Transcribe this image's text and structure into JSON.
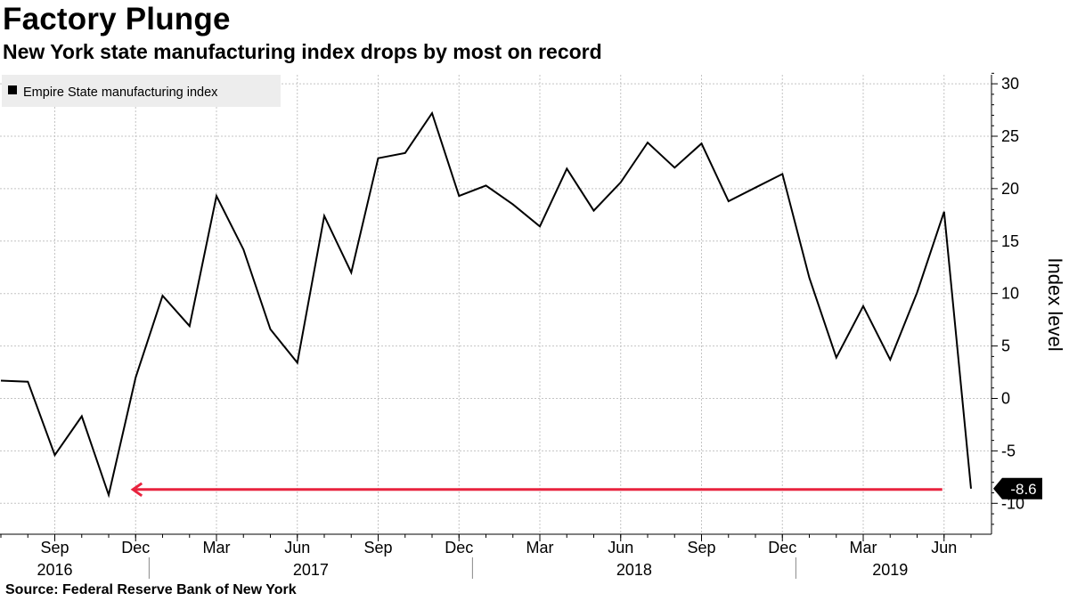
{
  "header": {
    "title": "Factory Plunge",
    "subtitle": "New York state manufacturing index drops by most on record"
  },
  "footer": {
    "source": "Source: Federal Reserve Bank of New York"
  },
  "colors": {
    "line": "#000000",
    "arrow": "#e8233e",
    "grid": "#c4c4c4",
    "callout_bg": "#000000"
  },
  "chart_data": {
    "type": "line",
    "title": "Factory Plunge",
    "subtitle": "New York state manufacturing index drops by most on record",
    "xlabel": "",
    "ylabel": "Index level",
    "ylim": [
      -13,
      31
    ],
    "yticks": [
      30,
      25,
      20,
      15,
      10,
      5,
      0,
      -5,
      -10
    ],
    "grid": true,
    "legend": {
      "position": "top-left",
      "entries": [
        "Empire State manufacturing index"
      ]
    },
    "month_labels": [
      {
        "month_index": 2,
        "label": "Sep"
      },
      {
        "month_index": 5,
        "label": "Dec"
      },
      {
        "month_index": 8,
        "label": "Mar"
      },
      {
        "month_index": 11,
        "label": "Jun"
      },
      {
        "month_index": 14,
        "label": "Sep"
      },
      {
        "month_index": 17,
        "label": "Dec"
      },
      {
        "month_index": 20,
        "label": "Mar"
      },
      {
        "month_index": 23,
        "label": "Jun"
      },
      {
        "month_index": 26,
        "label": "Sep"
      },
      {
        "month_index": 29,
        "label": "Dec"
      },
      {
        "month_index": 32,
        "label": "Mar"
      },
      {
        "month_index": 35,
        "label": "Jun"
      }
    ],
    "year_labels": [
      {
        "month_index": 2,
        "label": "2016"
      },
      {
        "month_index": 11.5,
        "label": "2017"
      },
      {
        "month_index": 23.5,
        "label": "2018"
      },
      {
        "month_index": 33,
        "label": "2019"
      }
    ],
    "year_separators": [
      5.5,
      17.5,
      29.5
    ],
    "series": [
      {
        "name": "Empire State manufacturing index",
        "x_start": "Jul 2016",
        "values": [
          1.7,
          1.6,
          -5.4,
          -1.7,
          -9.2,
          2.0,
          9.8,
          6.9,
          19.3,
          14.2,
          6.6,
          3.4,
          17.4,
          12.0,
          22.9,
          23.4,
          27.2,
          19.3,
          20.3,
          18.5,
          16.4,
          21.9,
          17.9,
          20.6,
          24.4,
          22.0,
          24.3,
          18.8,
          20.1,
          21.4,
          11.5,
          3.9,
          8.8,
          3.7,
          10.1,
          17.8,
          -8.6
        ]
      }
    ],
    "annotations": [
      {
        "type": "last-value-callout",
        "label": "-8.6",
        "value": -8.6
      },
      {
        "type": "arrow",
        "from_month_index": 35,
        "to_month_index": 4.9,
        "value": -8.6,
        "meaning": "index back to late-2016 low"
      }
    ]
  }
}
